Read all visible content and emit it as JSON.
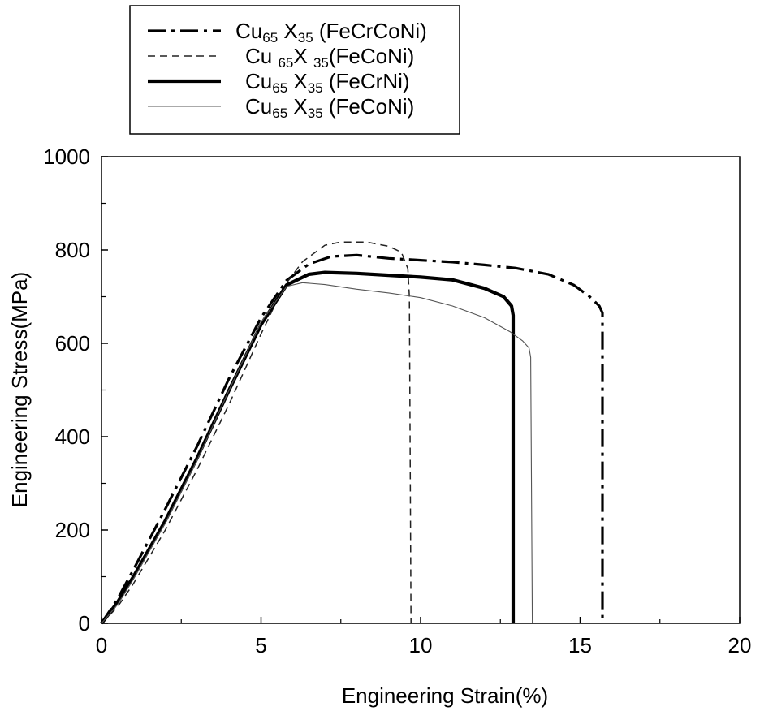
{
  "chart_data": {
    "type": "line",
    "title": "",
    "xlabel": "Engineering Strain(%)",
    "ylabel": "Engineering Stress(MPa)",
    "xlim": [
      0,
      20
    ],
    "ylim": [
      0,
      1000
    ],
    "x_ticks": [
      0,
      5,
      10,
      15,
      20
    ],
    "y_ticks": [
      0,
      200,
      400,
      600,
      800,
      1000
    ],
    "x_tick_labels": [
      "0",
      "5",
      "10",
      "15",
      "20"
    ],
    "y_tick_labels": [
      "0",
      "200",
      "400",
      "600",
      "800",
      "1000"
    ],
    "grid": false,
    "legend_position": "top-left, above plot",
    "series": [
      {
        "name": "Cu65 X35 (FeCrCoNi)",
        "label_parts": [
          "Cu",
          "65",
          " X",
          "35",
          " (FeCrCoNi)"
        ],
        "line_style": "dash-dot",
        "color": "#000000",
        "points": [
          [
            0,
            0
          ],
          [
            0.5,
            52
          ],
          [
            1,
            115
          ],
          [
            2,
            245
          ],
          [
            3,
            380
          ],
          [
            4,
            525
          ],
          [
            5,
            655
          ],
          [
            5.8,
            735
          ],
          [
            6.5,
            770
          ],
          [
            7.2,
            786
          ],
          [
            8,
            789
          ],
          [
            9,
            782
          ],
          [
            10,
            778
          ],
          [
            11,
            774
          ],
          [
            12,
            768
          ],
          [
            13,
            761
          ],
          [
            14,
            748
          ],
          [
            14.8,
            725
          ],
          [
            15.3,
            700
          ],
          [
            15.6,
            680
          ],
          [
            15.7,
            665
          ],
          [
            15.7,
            0
          ]
        ]
      },
      {
        "name": "Cu 65X 35(FeCoNi)",
        "label_parts": [
          "Cu ",
          "65",
          "X ",
          "35",
          "(FeCoNi)"
        ],
        "line_style": "dashed",
        "color": "#222222",
        "points": [
          [
            0,
            0
          ],
          [
            0.5,
            35
          ],
          [
            1,
            85
          ],
          [
            2,
            200
          ],
          [
            3,
            330
          ],
          [
            4,
            470
          ],
          [
            5,
            620
          ],
          [
            5.7,
            720
          ],
          [
            6.3,
            775
          ],
          [
            7,
            810
          ],
          [
            7.5,
            817
          ],
          [
            8.3,
            817
          ],
          [
            9,
            808
          ],
          [
            9.4,
            795
          ],
          [
            9.6,
            760
          ],
          [
            9.65,
            700
          ],
          [
            9.7,
            0
          ]
        ]
      },
      {
        "name": "Cu65 X35 (FeCrNi)",
        "label_parts": [
          "Cu",
          "65",
          " X",
          "35",
          " (FeCrNi)"
        ],
        "line_style": "solid-thick",
        "color": "#000000",
        "points": [
          [
            0,
            0
          ],
          [
            0.5,
            45
          ],
          [
            1,
            100
          ],
          [
            2,
            220
          ],
          [
            3,
            355
          ],
          [
            4,
            500
          ],
          [
            5,
            640
          ],
          [
            5.8,
            725
          ],
          [
            6.5,
            748
          ],
          [
            7,
            752
          ],
          [
            8,
            750
          ],
          [
            9,
            746
          ],
          [
            10,
            742
          ],
          [
            11,
            736
          ],
          [
            12,
            718
          ],
          [
            12.6,
            700
          ],
          [
            12.85,
            680
          ],
          [
            12.9,
            660
          ],
          [
            12.9,
            0
          ]
        ]
      },
      {
        "name": "Cu65 X35 (FeCoNi)",
        "label_parts": [
          "Cu",
          "65",
          " X",
          "35",
          " (FeCoNi)"
        ],
        "line_style": "solid-thin",
        "color": "#555555",
        "points": [
          [
            0,
            0
          ],
          [
            0.5,
            40
          ],
          [
            1,
            95
          ],
          [
            2,
            215
          ],
          [
            3,
            350
          ],
          [
            4,
            500
          ],
          [
            5,
            645
          ],
          [
            5.8,
            722
          ],
          [
            6.3,
            730
          ],
          [
            7,
            726
          ],
          [
            8,
            716
          ],
          [
            9,
            708
          ],
          [
            10,
            698
          ],
          [
            11,
            680
          ],
          [
            12,
            655
          ],
          [
            12.8,
            625
          ],
          [
            13.2,
            605
          ],
          [
            13.4,
            590
          ],
          [
            13.45,
            570
          ],
          [
            13.5,
            0
          ]
        ]
      }
    ]
  }
}
